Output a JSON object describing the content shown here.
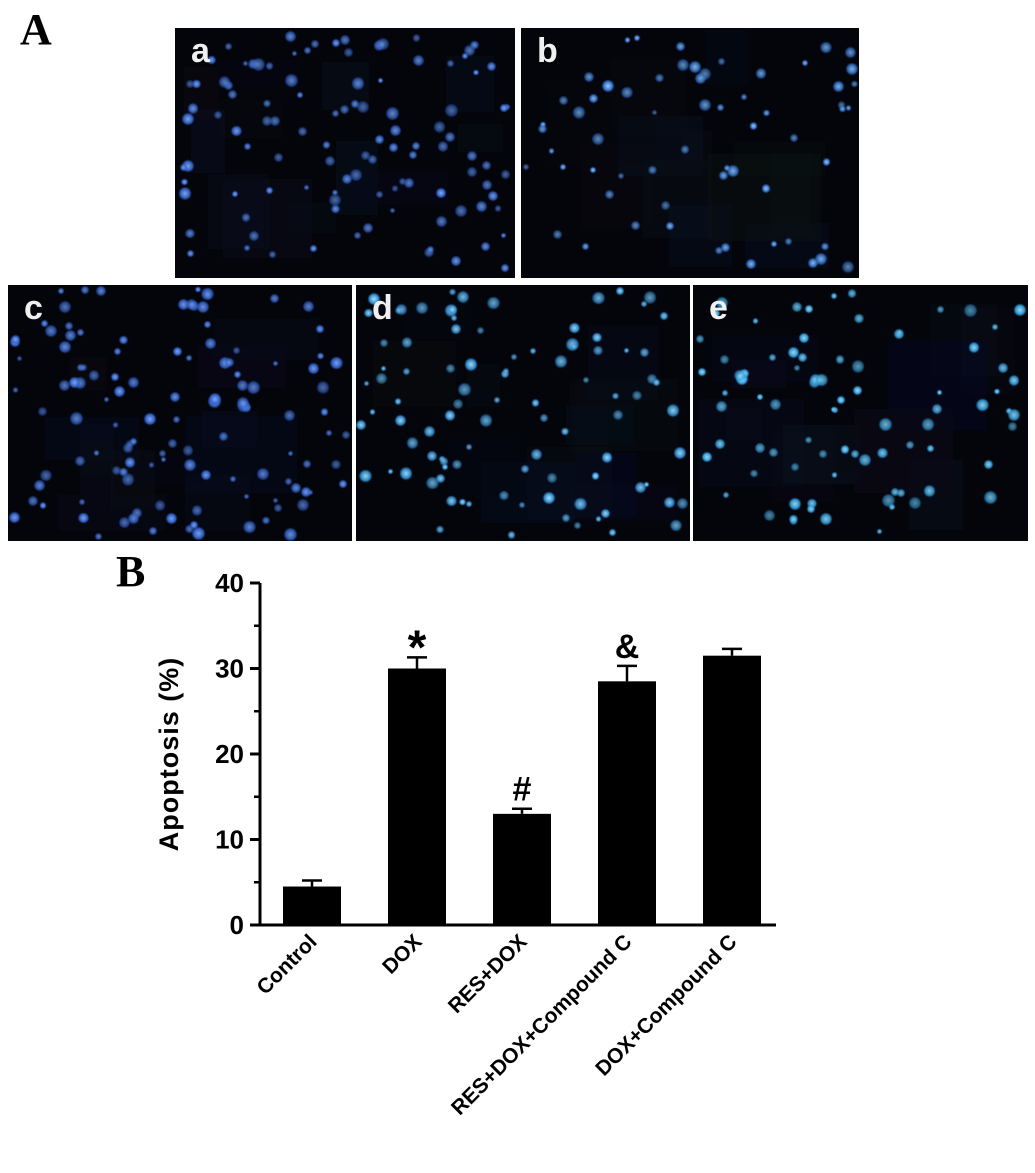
{
  "figure": {
    "panelA": {
      "label": "A",
      "micrographs": [
        {
          "label": "a",
          "dot_count": 105,
          "dot_color": "#2f5fc8",
          "dot_bright": "#8cb4f2"
        },
        {
          "label": "b",
          "dot_count": 62,
          "dot_color": "#2e6fd2",
          "dot_bright": "#a8dcff"
        },
        {
          "label": "c",
          "dot_count": 118,
          "dot_color": "#2f5ecb",
          "dot_bright": "#86aef0"
        },
        {
          "label": "d",
          "dot_count": 95,
          "dot_color": "#2f8ed8",
          "dot_bright": "#b0ecff"
        },
        {
          "label": "e",
          "dot_count": 82,
          "dot_color": "#2f9bdc",
          "dot_bright": "#a8ecff"
        }
      ]
    },
    "panelB": {
      "label": "B"
    }
  },
  "chart_data": {
    "type": "bar",
    "title": "",
    "xlabel": "",
    "ylabel": "Apoptosis (%)",
    "ylim": [
      0,
      40
    ],
    "yticks": [
      0,
      10,
      20,
      30,
      40
    ],
    "yticks_minor": [
      5,
      15,
      25,
      35
    ],
    "grid": false,
    "legend_position": "none",
    "bar_color": "#000000",
    "categories": [
      "Control",
      "DOX",
      "RES+DOX",
      "RES+DOX+Compound C",
      "DOX+Compound C"
    ],
    "values": [
      4.5,
      30,
      13,
      28.5,
      31.5
    ],
    "errors": [
      0.7,
      1.3,
      0.6,
      1.8,
      0.8
    ],
    "annotations": [
      "",
      "*",
      "#",
      "&",
      ""
    ]
  }
}
